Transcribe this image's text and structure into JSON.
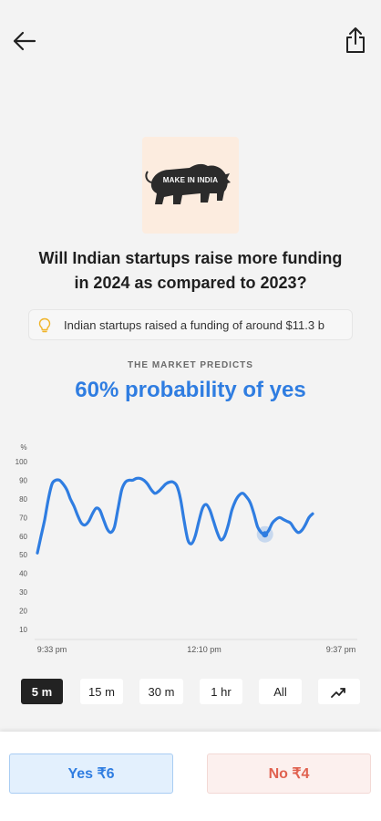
{
  "header": {
    "back_icon": "arrow-left-icon",
    "share_icon": "share-icon"
  },
  "event": {
    "logo_text": "MAKE IN INDIA",
    "question_line1": "Will Indian startups raise more funding",
    "question_line2": "in 2024 as compared to 2023?",
    "hint_icon": "bulb-icon",
    "hint": "Indian startups raised a funding of around $11.3 b"
  },
  "prediction": {
    "label": "THE MARKET PREDICTS",
    "value": "60% probability of yes"
  },
  "chart_data": {
    "type": "line",
    "ylabel": "%",
    "yticks": [
      "100",
      "90",
      "80",
      "70",
      "60",
      "50",
      "40",
      "30",
      "20",
      "10"
    ],
    "xtick_labels": [
      "9:33 pm",
      "12:10 pm",
      "9:37 pm"
    ],
    "ylim": [
      10,
      100
    ],
    "grid": false,
    "color": "#2f7de1",
    "series": [
      {
        "values": [
          51,
          60,
          69,
          80,
          88,
          90,
          90,
          88,
          85,
          80,
          76,
          71,
          67,
          66,
          68,
          72,
          75,
          74,
          69,
          64,
          62,
          65,
          75,
          85,
          89,
          90,
          90,
          91,
          91,
          90,
          88,
          85,
          83,
          84,
          86,
          88,
          89,
          89,
          87,
          80,
          68,
          58,
          56,
          60,
          68,
          75,
          77,
          74,
          68,
          62,
          58,
          60,
          66,
          74,
          79,
          82,
          83,
          81,
          78,
          72,
          65,
          62,
          61,
          63,
          67,
          69,
          70,
          69,
          68,
          67,
          64,
          62,
          63,
          66,
          70,
          72
        ]
      }
    ],
    "marker_index": 62
  },
  "ranges": {
    "items": [
      "5 m",
      "15 m",
      "30 m",
      "1 hr",
      "All"
    ],
    "active_index": 0,
    "trend_icon": "trending-up-icon"
  },
  "actions": {
    "yes": "Yes ₹6",
    "no": "No ₹4"
  },
  "colors": {
    "accent": "#2f7de1",
    "yes_bg": "#e3f0fd",
    "no_text": "#e0614f"
  }
}
